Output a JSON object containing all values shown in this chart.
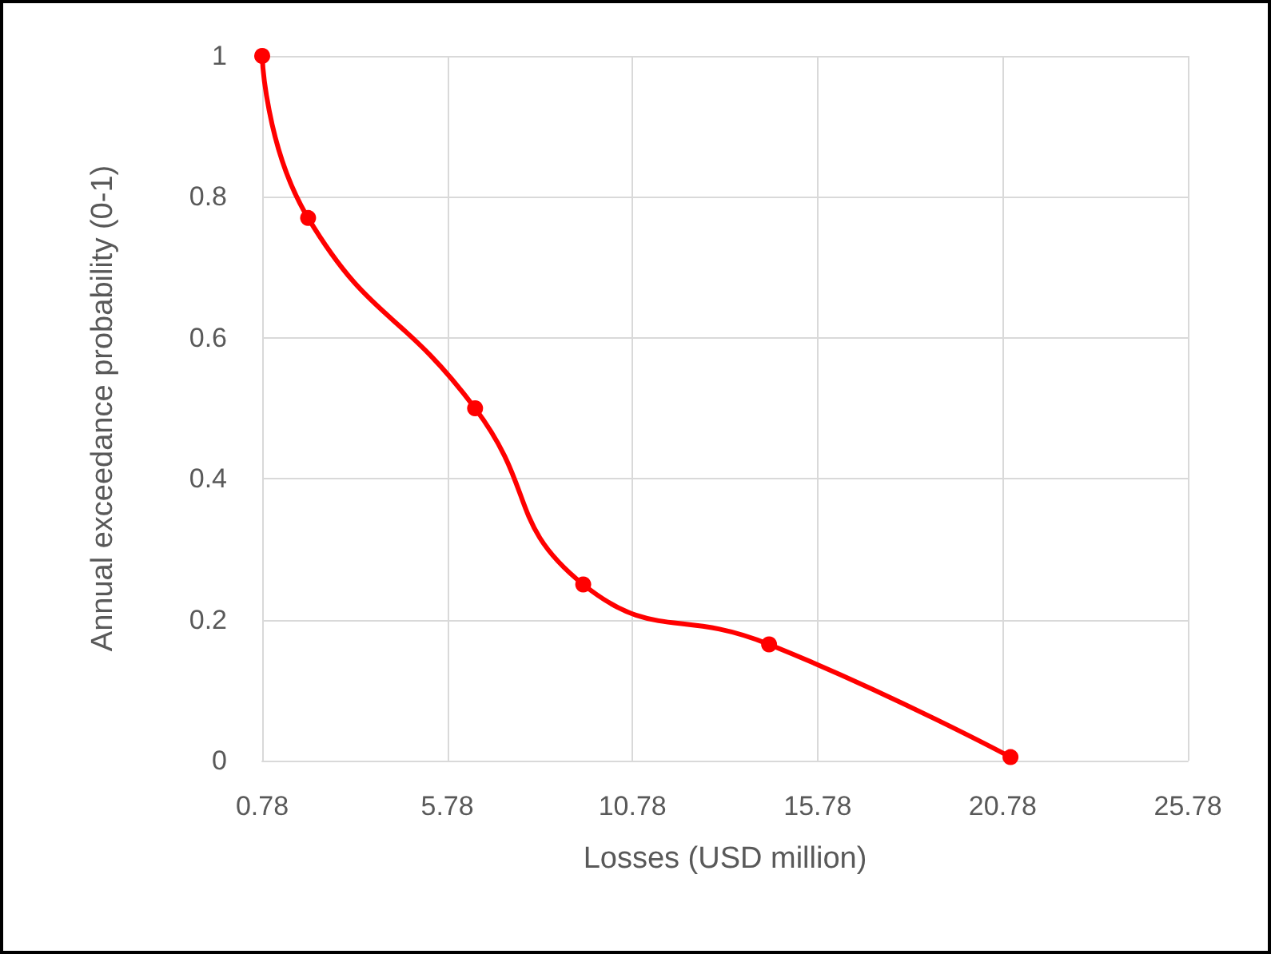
{
  "chart_data": {
    "type": "line",
    "xlabel": "Losses (USD million)",
    "ylabel": "Annual exceedance probability (0-1)",
    "x": [
      0.78,
      2.02,
      6.53,
      9.45,
      14.47,
      20.99
    ],
    "series": [
      {
        "color": "#ff0000",
        "values": [
          1,
          0.77,
          0.5,
          0.25,
          0.165,
          0.005
        ]
      }
    ],
    "xlim": [
      0.78,
      25.78
    ],
    "xticks": [
      0.78,
      5.78,
      10.78,
      15.78,
      20.78,
      25.78
    ],
    "ylim": [
      0,
      1
    ],
    "yticks": [
      0,
      0.2,
      0.4,
      0.6,
      0.8,
      1
    ],
    "grid": true,
    "marker": "circle",
    "line_style": "solid"
  }
}
